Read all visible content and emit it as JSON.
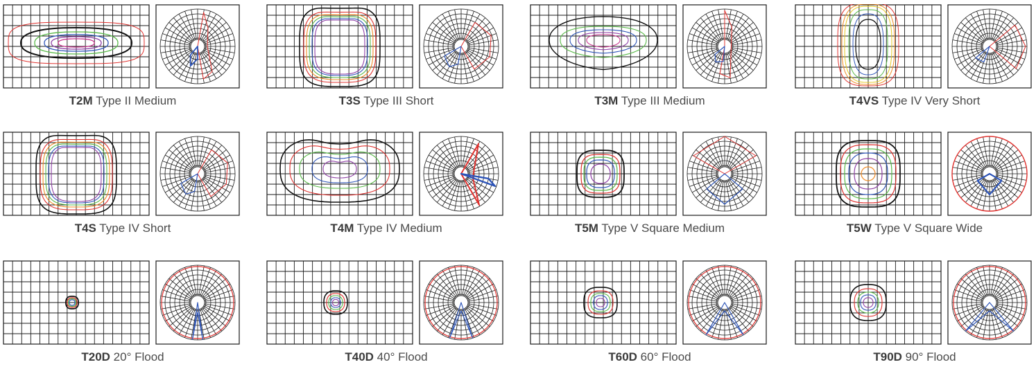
{
  "colors": {
    "grid": "#1a1a1a",
    "black": "#111111",
    "red": "#e0312e",
    "orange": "#f08a24",
    "yellow": "#e6c81f",
    "green": "#58b947",
    "blue": "#2e55b8",
    "purple": "#8f3fa6",
    "magenta": "#c8368f"
  },
  "distributions": [
    {
      "code": "T2M",
      "name": "Type II Medium",
      "shape": "lateral"
    },
    {
      "code": "T3S",
      "name": "Type III Short",
      "shape": "tall-rect"
    },
    {
      "code": "T3M",
      "name": "Type III Medium",
      "shape": "forward"
    },
    {
      "code": "T4VS",
      "name": "Type IV Very Short",
      "shape": "vertical"
    },
    {
      "code": "T4S",
      "name": "Type IV Short",
      "shape": "tall-rect"
    },
    {
      "code": "T4M",
      "name": "Type IV Medium",
      "shape": "kidney"
    },
    {
      "code": "T5M",
      "name": "Type V Square Medium",
      "shape": "square-m"
    },
    {
      "code": "T5W",
      "name": "Type V Square Wide",
      "shape": "square-w"
    },
    {
      "code": "T20D",
      "name": "20° Flood",
      "shape": "spot-20"
    },
    {
      "code": "T40D",
      "name": "40° Flood",
      "shape": "spot-40"
    },
    {
      "code": "T60D",
      "name": "60° Flood",
      "shape": "spot-60"
    },
    {
      "code": "T90D",
      "name": "90° Flood",
      "shape": "spot-90"
    }
  ]
}
